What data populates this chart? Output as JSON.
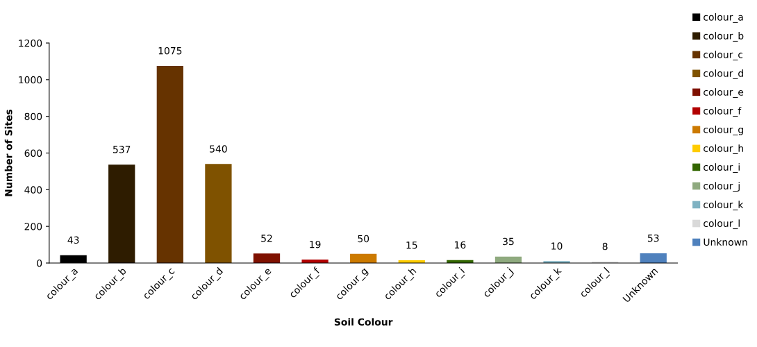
{
  "chart_data": {
    "type": "bar",
    "xlabel": "Soil Colour",
    "ylabel": "Number of Sites",
    "categories": [
      "colour_a",
      "colour_b",
      "colour_c",
      "colour_d",
      "colour_e",
      "colour_f",
      "colour_g",
      "colour_h",
      "colour_i",
      "colour_j",
      "colour_k",
      "colour_l",
      "Unknown"
    ],
    "series": [
      {
        "name": "colour_a",
        "color": "#000000",
        "values": [
          43,
          null,
          null,
          null,
          null,
          null,
          null,
          null,
          null,
          null,
          null,
          null,
          null
        ]
      },
      {
        "name": "colour_b",
        "color": "#2e1c00",
        "values": [
          null,
          537,
          null,
          null,
          null,
          null,
          null,
          null,
          null,
          null,
          null,
          null,
          null
        ]
      },
      {
        "name": "colour_c",
        "color": "#663300",
        "values": [
          null,
          null,
          1075,
          null,
          null,
          null,
          null,
          null,
          null,
          null,
          null,
          null,
          null
        ]
      },
      {
        "name": "colour_d",
        "color": "#7f5200",
        "values": [
          null,
          null,
          null,
          540,
          null,
          null,
          null,
          null,
          null,
          null,
          null,
          null,
          null
        ]
      },
      {
        "name": "colour_e",
        "color": "#7f1100",
        "values": [
          null,
          null,
          null,
          null,
          52,
          null,
          null,
          null,
          null,
          null,
          null,
          null,
          null
        ]
      },
      {
        "name": "colour_f",
        "color": "#b20000",
        "values": [
          null,
          null,
          null,
          null,
          null,
          19,
          null,
          null,
          null,
          null,
          null,
          null,
          null
        ]
      },
      {
        "name": "colour_g",
        "color": "#cc7a00",
        "values": [
          null,
          null,
          null,
          null,
          null,
          null,
          50,
          null,
          null,
          null,
          null,
          null,
          null
        ]
      },
      {
        "name": "colour_h",
        "color": "#ffcc00",
        "values": [
          null,
          null,
          null,
          null,
          null,
          null,
          null,
          15,
          null,
          null,
          null,
          null,
          null
        ]
      },
      {
        "name": "colour_i",
        "color": "#336600",
        "values": [
          null,
          null,
          null,
          null,
          null,
          null,
          null,
          null,
          16,
          null,
          null,
          null,
          null
        ]
      },
      {
        "name": "colour_j",
        "color": "#8faa7f",
        "values": [
          null,
          null,
          null,
          null,
          null,
          null,
          null,
          null,
          null,
          35,
          null,
          null,
          null
        ]
      },
      {
        "name": "colour_k",
        "color": "#7fb2c2",
        "values": [
          null,
          null,
          null,
          null,
          null,
          null,
          null,
          null,
          null,
          null,
          10,
          null,
          null
        ]
      },
      {
        "name": "colour_l",
        "color": "#d9d9d9",
        "values": [
          null,
          null,
          null,
          null,
          null,
          null,
          null,
          null,
          null,
          null,
          null,
          8,
          null
        ]
      },
      {
        "name": "Unknown",
        "color": "#4f81bd",
        "values": [
          null,
          null,
          null,
          null,
          null,
          null,
          null,
          null,
          null,
          null,
          null,
          null,
          53
        ]
      }
    ],
    "ylim": [
      0,
      1200
    ],
    "yticks": [
      0,
      200,
      400,
      600,
      800,
      1000,
      1200
    ],
    "data_labels": true,
    "grid": false,
    "legend": "right"
  }
}
